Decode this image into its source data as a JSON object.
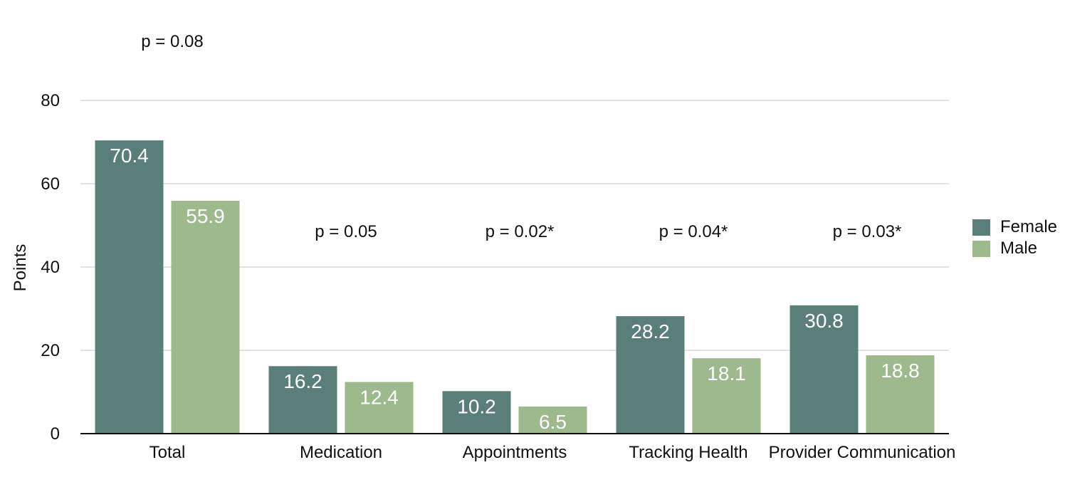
{
  "chart_data": {
    "type": "bar",
    "categories": [
      "Total",
      "Medication",
      "Appointments",
      "Tracking Health",
      "Provider Communication"
    ],
    "series": [
      {
        "name": "Female",
        "values": [
          70.4,
          16.2,
          10.2,
          28.2,
          30.8
        ],
        "color": "#5a7f78"
      },
      {
        "name": "Male",
        "values": [
          55.9,
          12.4,
          6.5,
          18.1,
          18.8
        ],
        "color": "#9dba8c"
      }
    ],
    "annotations": [
      "p = 0.08",
      "p = 0.05",
      "p = 0.02*",
      "p = 0.04*",
      "p = 0.03*"
    ],
    "ylabel": "Points",
    "ylim": [
      0,
      80
    ],
    "yticks": [
      "0",
      "20",
      "40",
      "60",
      "80"
    ],
    "grid": true,
    "legend_position": "right"
  }
}
